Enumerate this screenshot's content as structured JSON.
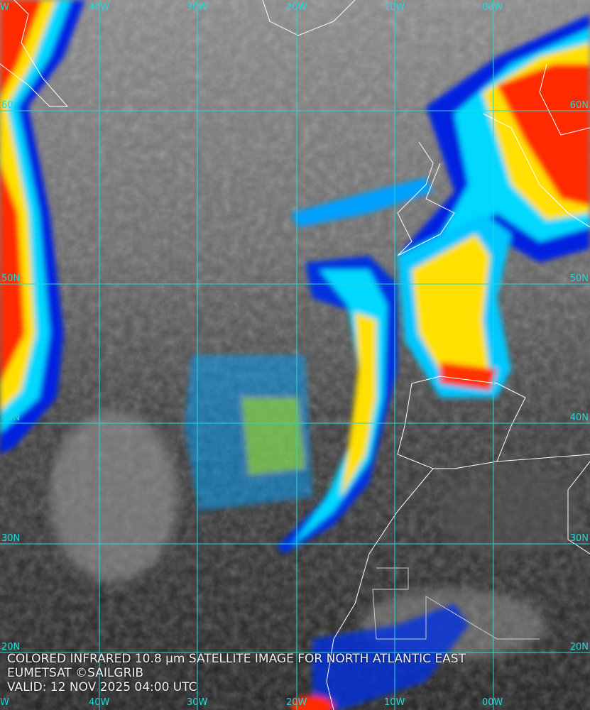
{
  "caption": {
    "line1": "COLORED INFRARED 10.8 µm SATELLITE IMAGE FOR NORTH ATLANTIC EAST",
    "line2": "EUMETSAT ©SAILGRIB",
    "line3": "VALID:  12 NOV 2025 04:00 UTC"
  },
  "longitude_labels": [
    "W",
    "40W",
    "30W",
    "20W",
    "10W",
    "00W"
  ],
  "latitude_labels": {
    "left": [
      "60",
      "50N",
      "40N",
      "30N",
      "20N"
    ],
    "right": [
      "60N",
      "50N",
      "40N",
      "30N",
      "20N"
    ]
  },
  "colors": {
    "grid": "#22d8d8",
    "coast": "#ffffff",
    "cold_top_red": "#ff2a00",
    "yellow": "#ffe600",
    "cyan": "#00e5ff",
    "blue": "#0010d0"
  }
}
